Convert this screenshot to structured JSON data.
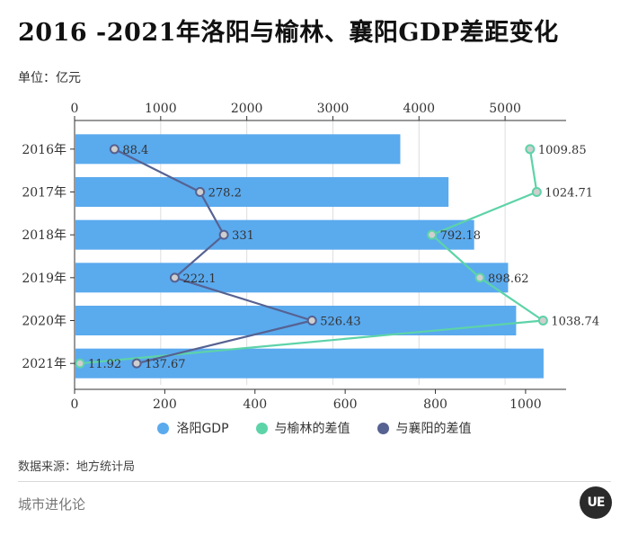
{
  "header": {
    "title": "2016 -2021年洛阳与榆林、襄阳GDP差距变化",
    "unit": "单位：亿元"
  },
  "footer": {
    "source": "数据来源：地方统计局",
    "brand": "城市进化论",
    "logo_text": "UE"
  },
  "colors": {
    "bar": "#5aaaee",
    "yulin": "#5dd3a8",
    "xiangyang": "#566291",
    "grid": "#dddddd",
    "axis": "#333333"
  },
  "chart_data": {
    "type": "bar",
    "title": "2016 -2021年洛阳与榆林、襄阳GDP差距变化",
    "categories": [
      "2016年",
      "2017年",
      "2018年",
      "2019年",
      "2020年",
      "2021年"
    ],
    "top_axis": {
      "range": [
        0,
        5500
      ],
      "ticks": [
        "0",
        "1000",
        "2000",
        "3000",
        "4000",
        "5000"
      ]
    },
    "bottom_axis": {
      "range": [
        0,
        1050
      ],
      "ticks": [
        "0",
        "200",
        "400",
        "600",
        "800",
        "1000"
      ]
    },
    "series": [
      {
        "name": "洛阳GDP",
        "kind": "bar",
        "axis": "top",
        "values": [
          3782.9,
          4343.1,
          4640.8,
          5034.9,
          5128.4,
          5447.1
        ]
      },
      {
        "name": "与榆林的差值",
        "kind": "line",
        "axis": "bottom",
        "values": [
          1009.85,
          1024.71,
          792.18,
          898.62,
          1038.74,
          11.92
        ],
        "labels": [
          "1009.85",
          "1024.71",
          "792.18",
          "898.62",
          "1038.74",
          "11.92"
        ]
      },
      {
        "name": "与襄阳的差值",
        "kind": "line",
        "axis": "bottom",
        "values": [
          88.4,
          278.2,
          331,
          222.1,
          526.43,
          137.67
        ],
        "labels": [
          "88.4",
          "278.2",
          "331",
          "222.1",
          "526.43",
          "137.67"
        ]
      }
    ],
    "legend": [
      "洛阳GDP",
      "与榆林的差值",
      "与襄阳的差值"
    ],
    "legend_position": "bottom"
  }
}
